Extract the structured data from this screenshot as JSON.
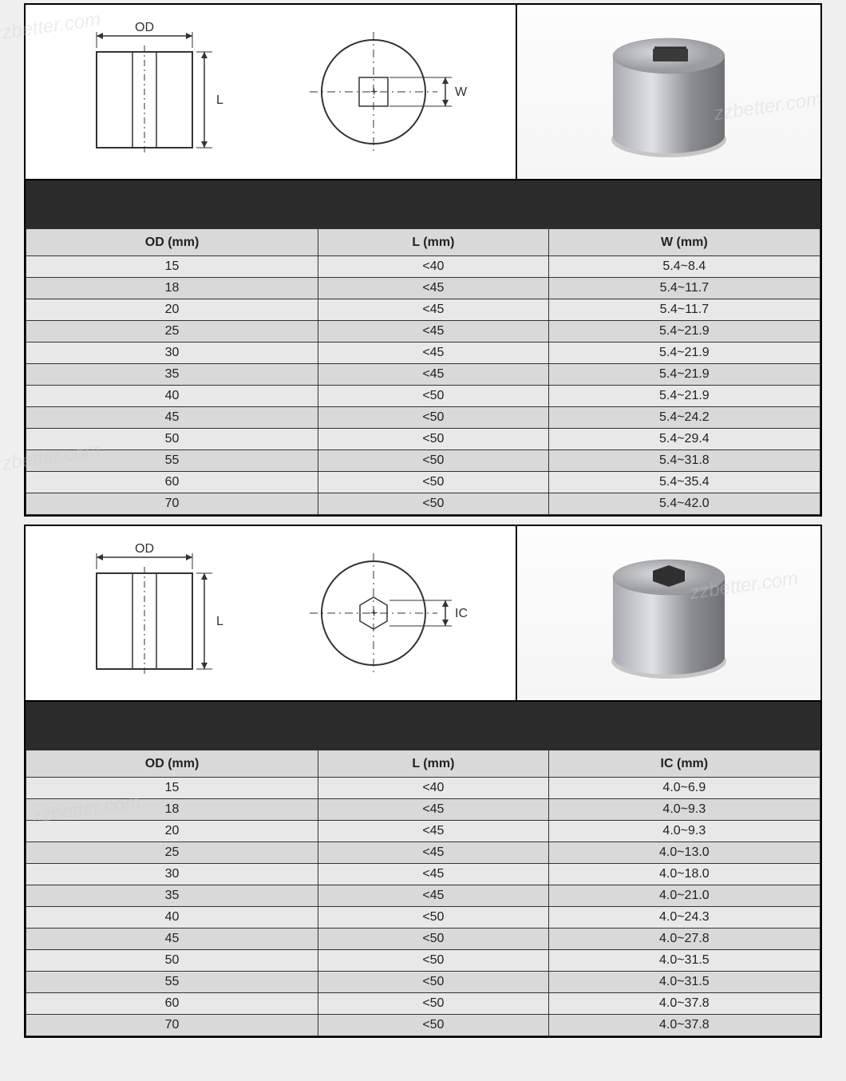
{
  "watermark_text": "zzbetter.com",
  "section1": {
    "hole_shape": "square",
    "diagram": {
      "side_view": {
        "od_label": "OD",
        "l_label": "L"
      },
      "top_view": {
        "dim_label": "W"
      },
      "line_color": "#333",
      "label_fontsize": 16
    },
    "render3d": {
      "body_color_light": "#c5c7cb",
      "body_color_dark": "#7a7c80",
      "hole_color": "#3a3a3a"
    },
    "table": {
      "columns": [
        "OD (mm)",
        "L (mm)",
        "W (mm)"
      ],
      "rows": [
        [
          "15",
          "<40",
          "5.4~8.4"
        ],
        [
          "18",
          "<45",
          "5.4~11.7"
        ],
        [
          "20",
          "<45",
          "5.4~11.7"
        ],
        [
          "25",
          "<45",
          "5.4~21.9"
        ],
        [
          "30",
          "<45",
          "5.4~21.9"
        ],
        [
          "35",
          "<45",
          "5.4~21.9"
        ],
        [
          "40",
          "<50",
          "5.4~21.9"
        ],
        [
          "45",
          "<50",
          "5.4~24.2"
        ],
        [
          "50",
          "<50",
          "5.4~29.4"
        ],
        [
          "55",
          "<50",
          "5.4~31.8"
        ],
        [
          "60",
          "<50",
          "5.4~35.4"
        ],
        [
          "70",
          "<50",
          "5.4~42.0"
        ]
      ],
      "header_bg": "#d9d9d9",
      "row_alt_bg": "#d9d9d9",
      "row_bg": "#e8e8e8",
      "border_color": "#333",
      "fontsize": 16
    }
  },
  "section2": {
    "hole_shape": "hexagon",
    "diagram": {
      "side_view": {
        "od_label": "OD",
        "l_label": "L"
      },
      "top_view": {
        "dim_label": "IC"
      },
      "line_color": "#333",
      "label_fontsize": 16
    },
    "render3d": {
      "body_color_light": "#c5c7cb",
      "body_color_dark": "#7a7c80",
      "hole_color": "#3a3a3a"
    },
    "table": {
      "columns": [
        "OD (mm)",
        "L (mm)",
        "IC (mm)"
      ],
      "rows": [
        [
          "15",
          "<40",
          "4.0~6.9"
        ],
        [
          "18",
          "<45",
          "4.0~9.3"
        ],
        [
          "20",
          "<45",
          "4.0~9.3"
        ],
        [
          "25",
          "<45",
          "4.0~13.0"
        ],
        [
          "30",
          "<45",
          "4.0~18.0"
        ],
        [
          "35",
          "<45",
          "4.0~21.0"
        ],
        [
          "40",
          "<50",
          "4.0~24.3"
        ],
        [
          "45",
          "<50",
          "4.0~27.8"
        ],
        [
          "50",
          "<50",
          "4.0~31.5"
        ],
        [
          "55",
          "<50",
          "4.0~31.5"
        ],
        [
          "60",
          "<50",
          "4.0~37.8"
        ],
        [
          "70",
          "<50",
          "4.0~37.8"
        ]
      ],
      "header_bg": "#d9d9d9",
      "row_alt_bg": "#d9d9d9",
      "row_bg": "#e8e8e8",
      "border_color": "#333",
      "fontsize": 16
    }
  }
}
